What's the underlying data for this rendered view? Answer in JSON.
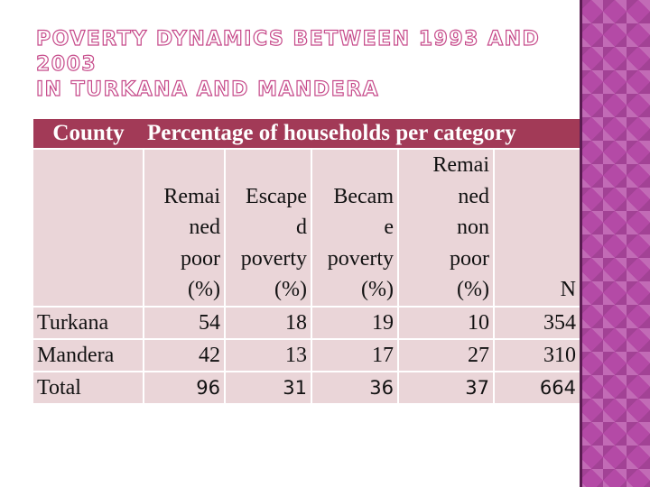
{
  "slide": {
    "title_line1": "POVERTY DYNAMICS BETWEEN 1993 AND 2003",
    "title_line2": "IN TURKANA AND MANDERA"
  },
  "table": {
    "header": {
      "county": "County",
      "category": "Percentage of households per category"
    },
    "columns": [
      [
        "Remai",
        "ned",
        "poor",
        "(%)"
      ],
      [
        "Escape",
        "d",
        "poverty",
        "(%)"
      ],
      [
        "Becam",
        "e",
        "poverty",
        "(%)"
      ],
      [
        "Remai",
        "ned",
        "non",
        "poor",
        "(%)"
      ],
      [
        "N"
      ]
    ],
    "rows": [
      {
        "county": "Turkana",
        "values": [
          "54",
          "18",
          "19",
          "10",
          "354"
        ]
      },
      {
        "county": "Mandera",
        "values": [
          "42",
          "13",
          "17",
          "27",
          "310"
        ]
      },
      {
        "county": "Total",
        "values": [
          "96",
          "31",
          "36",
          "37",
          "664"
        ]
      }
    ]
  },
  "colors": {
    "header_bg": "#a23a57",
    "cell_bg": "#ead5d8",
    "title_outline": "#c64a8a",
    "side_strip": "#b44aa6"
  }
}
